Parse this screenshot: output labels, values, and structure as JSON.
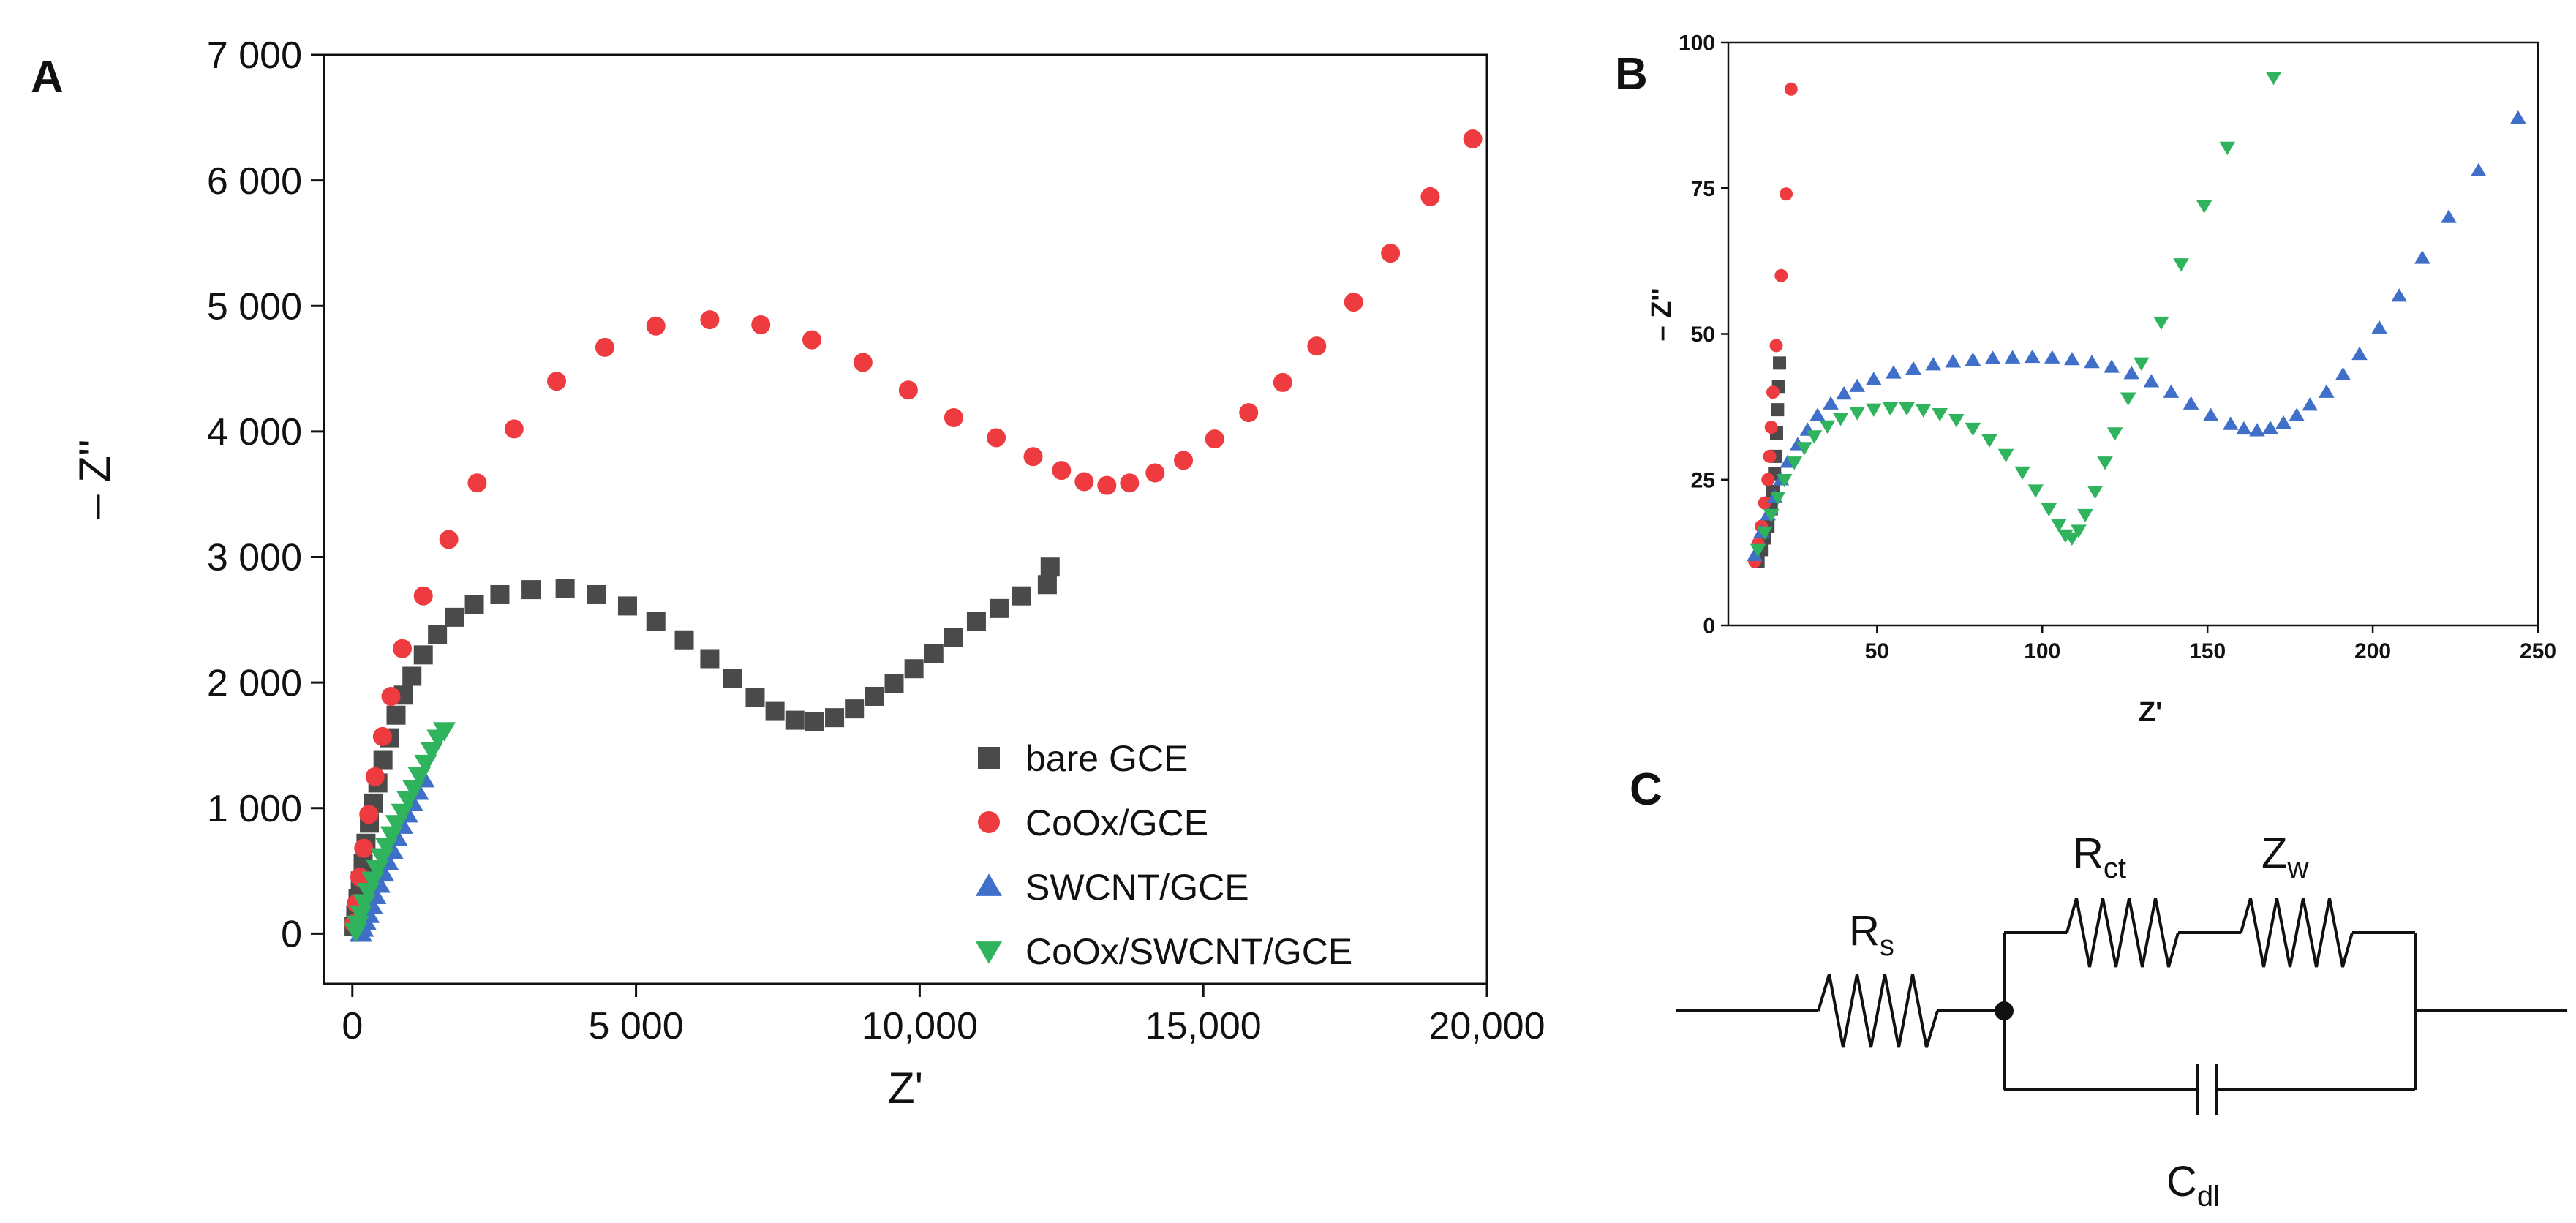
{
  "panels": {
    "a_label": "A",
    "b_label": "B",
    "c_label": "C"
  },
  "colors": {
    "bare": "#4a4a4a",
    "coox": "#ee3b3f",
    "swcnt": "#3f6fc8",
    "coox_swcnt": "#2fb35c",
    "axis": "#111111"
  },
  "chart_data": [
    {
      "panel": "A",
      "type": "scatter",
      "title": "",
      "xlabel": "Z'",
      "ylabel": "– Z''",
      "xlim": [
        -500,
        20000
      ],
      "ylim": [
        -400,
        7000
      ],
      "xticks": [
        0,
        5000,
        10000,
        15000,
        20000
      ],
      "xtick_labels": [
        "0",
        "5 000",
        "10,000",
        "15,000",
        "20,000"
      ],
      "yticks": [
        0,
        1000,
        2000,
        3000,
        4000,
        5000,
        6000,
        7000
      ],
      "ytick_labels": [
        "0",
        "1 000",
        "2 000",
        "3 000",
        "4 000",
        "5 000",
        "6 000",
        "7 000"
      ],
      "legend_position": "bottom-right",
      "series": [
        {
          "name": "bare GCE",
          "marker": "square",
          "color_key": "bare",
          "points": [
            [
              30,
              60
            ],
            [
              60,
              150
            ],
            [
              100,
              280
            ],
            [
              140,
              420
            ],
            [
              190,
              560
            ],
            [
              240,
              720
            ],
            [
              300,
              880
            ],
            [
              370,
              1040
            ],
            [
              450,
              1200
            ],
            [
              540,
              1380
            ],
            [
              650,
              1560
            ],
            [
              770,
              1740
            ],
            [
              900,
              1900
            ],
            [
              1050,
              2050
            ],
            [
              1250,
              2220
            ],
            [
              1500,
              2380
            ],
            [
              1800,
              2520
            ],
            [
              2150,
              2620
            ],
            [
              2600,
              2700
            ],
            [
              3150,
              2740
            ],
            [
              3750,
              2750
            ],
            [
              4300,
              2700
            ],
            [
              4850,
              2610
            ],
            [
              5350,
              2490
            ],
            [
              5850,
              2340
            ],
            [
              6300,
              2190
            ],
            [
              6700,
              2030
            ],
            [
              7100,
              1880
            ],
            [
              7450,
              1770
            ],
            [
              7800,
              1700
            ],
            [
              8150,
              1690
            ],
            [
              8500,
              1720
            ],
            [
              8850,
              1790
            ],
            [
              9200,
              1890
            ],
            [
              9550,
              1990
            ],
            [
              9900,
              2110
            ],
            [
              10250,
              2230
            ],
            [
              10600,
              2360
            ],
            [
              11000,
              2490
            ],
            [
              11400,
              2590
            ],
            [
              11800,
              2690
            ],
            [
              12250,
              2780
            ],
            [
              12300,
              2920
            ]
          ]
        },
        {
          "name": "CoOx/GCE",
          "marker": "circle",
          "color_key": "coox",
          "points": [
            [
              30,
              80
            ],
            [
              70,
              240
            ],
            [
              130,
              450
            ],
            [
              200,
              680
            ],
            [
              290,
              950
            ],
            [
              400,
              1250
            ],
            [
              530,
              1570
            ],
            [
              680,
              1890
            ],
            [
              880,
              2270
            ],
            [
              1250,
              2690
            ],
            [
              1700,
              3140
            ],
            [
              2200,
              3590
            ],
            [
              2850,
              4020
            ],
            [
              3600,
              4400
            ],
            [
              4450,
              4670
            ],
            [
              5350,
              4840
            ],
            [
              6300,
              4890
            ],
            [
              7200,
              4850
            ],
            [
              8100,
              4730
            ],
            [
              9000,
              4550
            ],
            [
              9800,
              4330
            ],
            [
              10600,
              4110
            ],
            [
              11350,
              3950
            ],
            [
              12000,
              3800
            ],
            [
              12500,
              3690
            ],
            [
              12900,
              3600
            ],
            [
              13300,
              3570
            ],
            [
              13700,
              3590
            ],
            [
              14150,
              3670
            ],
            [
              14650,
              3770
            ],
            [
              15200,
              3940
            ],
            [
              15800,
              4150
            ],
            [
              16400,
              4390
            ],
            [
              17000,
              4680
            ],
            [
              17650,
              5030
            ],
            [
              18300,
              5420
            ],
            [
              19000,
              5870
            ],
            [
              19750,
              6330
            ]
          ]
        },
        {
          "name": "SWCNT/GCE",
          "marker": "triangle-up",
          "color_key": "swcnt",
          "points": [
            [
              150,
              0
            ],
            [
              180,
              40
            ],
            [
              230,
              90
            ],
            [
              280,
              150
            ],
            [
              340,
              220
            ],
            [
              400,
              300
            ],
            [
              470,
              390
            ],
            [
              540,
              480
            ],
            [
              620,
              570
            ],
            [
              700,
              660
            ],
            [
              780,
              760
            ],
            [
              870,
              860
            ],
            [
              960,
              950
            ],
            [
              1050,
              1040
            ],
            [
              1150,
              1130
            ],
            [
              1250,
              1230
            ]
          ]
        },
        {
          "name": "CoOx/SWCNT/GCE",
          "marker": "triangle-down",
          "color_key": "coox_swcnt",
          "points": [
            [
              60,
              20
            ],
            [
              100,
              80
            ],
            [
              150,
              160
            ],
            [
              210,
              250
            ],
            [
              280,
              340
            ],
            [
              360,
              430
            ],
            [
              440,
              520
            ],
            [
              520,
              610
            ],
            [
              600,
              700
            ],
            [
              690,
              790
            ],
            [
              780,
              880
            ],
            [
              880,
              970
            ],
            [
              980,
              1070
            ],
            [
              1080,
              1160
            ],
            [
              1180,
              1260
            ],
            [
              1290,
              1360
            ],
            [
              1400,
              1460
            ],
            [
              1510,
              1560
            ],
            [
              1620,
              1620
            ]
          ]
        }
      ]
    },
    {
      "panel": "B",
      "type": "scatter",
      "title": "",
      "xlabel": "Z'",
      "ylabel": "– Z''",
      "xlim": [
        5,
        250
      ],
      "ylim": [
        0,
        100
      ],
      "xticks": [
        50,
        100,
        150,
        200,
        250
      ],
      "xtick_labels": [
        "50",
        "100",
        "150",
        "200",
        "250"
      ],
      "yticks": [
        0,
        25,
        50,
        75,
        100
      ],
      "ytick_labels": [
        "0",
        "25",
        "50",
        "75",
        "100"
      ],
      "series": [
        {
          "name": "bare GCE",
          "marker": "square",
          "color_key": "bare",
          "points": [
            [
              14,
              11
            ],
            [
              15,
              13
            ],
            [
              16,
              15
            ],
            [
              17,
              17
            ],
            [
              18,
              20
            ],
            [
              18.5,
              23
            ],
            [
              19,
              26
            ],
            [
              19.3,
              29
            ],
            [
              19.6,
              33
            ],
            [
              19.9,
              37
            ],
            [
              20.2,
              41
            ],
            [
              20.5,
              45
            ]
          ]
        },
        {
          "name": "CoOx/GCE",
          "marker": "circle",
          "color_key": "coox",
          "points": [
            [
              13,
              11
            ],
            [
              14,
              14
            ],
            [
              15,
              17
            ],
            [
              16,
              21
            ],
            [
              17,
              25
            ],
            [
              17.5,
              29
            ],
            [
              18,
              34
            ],
            [
              18.5,
              40
            ],
            [
              19.5,
              48
            ],
            [
              21,
              60
            ],
            [
              22.5,
              74
            ],
            [
              24,
              92
            ]
          ]
        },
        {
          "name": "SWCNT/GCE",
          "marker": "triangle-up",
          "color_key": "swcnt",
          "points": [
            [
              13,
              12
            ],
            [
              15,
              16
            ],
            [
              17,
              19
            ],
            [
              19,
              22
            ],
            [
              21,
              25
            ],
            [
              23,
              28
            ],
            [
              26,
              31
            ],
            [
              29,
              33.5
            ],
            [
              32,
              36
            ],
            [
              36,
              38
            ],
            [
              40,
              39.7
            ],
            [
              44,
              41
            ],
            [
              49,
              42.2
            ],
            [
              55,
              43.3
            ],
            [
              61,
              44
            ],
            [
              67,
              44.7
            ],
            [
              73,
              45.2
            ],
            [
              79,
              45.5
            ],
            [
              85,
              45.8
            ],
            [
              91,
              45.9
            ],
            [
              97,
              46
            ],
            [
              103,
              45.9
            ],
            [
              109,
              45.6
            ],
            [
              115,
              45.1
            ],
            [
              121,
              44.3
            ],
            [
              127,
              43.2
            ],
            [
              133,
              41.8
            ],
            [
              139,
              40
            ],
            [
              145,
              38
            ],
            [
              151,
              36
            ],
            [
              157,
              34.5
            ],
            [
              161,
              33.7
            ],
            [
              165,
              33.4
            ],
            [
              169,
              33.8
            ],
            [
              173,
              34.7
            ],
            [
              177,
              36
            ],
            [
              181,
              37.8
            ],
            [
              186,
              40
            ],
            [
              191,
              43
            ],
            [
              196,
              46.5
            ],
            [
              202,
              51
            ],
            [
              208,
              56.5
            ],
            [
              215,
              63
            ],
            [
              223,
              70
            ],
            [
              232,
              78
            ],
            [
              244,
              87
            ]
          ]
        },
        {
          "name": "CoOx/SWCNT/GCE",
          "marker": "triangle-down",
          "color_key": "coox_swcnt",
          "points": [
            [
              14,
              13
            ],
            [
              16,
              16
            ],
            [
              18,
              19
            ],
            [
              20,
              22
            ],
            [
              22,
              25
            ],
            [
              25,
              28
            ],
            [
              28,
              30.5
            ],
            [
              31,
              32.5
            ],
            [
              35,
              34.2
            ],
            [
              39,
              35.5
            ],
            [
              44,
              36.5
            ],
            [
              49,
              37.1
            ],
            [
              54,
              37.3
            ],
            [
              59,
              37.3
            ],
            [
              64,
              37
            ],
            [
              69,
              36.3
            ],
            [
              74,
              35.3
            ],
            [
              79,
              33.8
            ],
            [
              84,
              31.8
            ],
            [
              89,
              29.3
            ],
            [
              94,
              26.3
            ],
            [
              98,
              23.2
            ],
            [
              102,
              20
            ],
            [
              105,
              17.3
            ],
            [
              107,
              15.5
            ],
            [
              109,
              15
            ],
            [
              111,
              16.3
            ],
            [
              113,
              19
            ],
            [
              116,
              23
            ],
            [
              119,
              28
            ],
            [
              122,
              33
            ],
            [
              126,
              39
            ],
            [
              130,
              45
            ],
            [
              136,
              52
            ],
            [
              142,
              62
            ],
            [
              149,
              72
            ],
            [
              156,
              82
            ],
            [
              170,
              94
            ]
          ]
        }
      ]
    }
  ],
  "circuit": {
    "rs": {
      "main": "R",
      "sub": "s"
    },
    "rct": {
      "main": "R",
      "sub": "ct"
    },
    "zw": {
      "main": "Z",
      "sub": "w"
    },
    "cdl": {
      "main": "C",
      "sub": "dl"
    }
  }
}
